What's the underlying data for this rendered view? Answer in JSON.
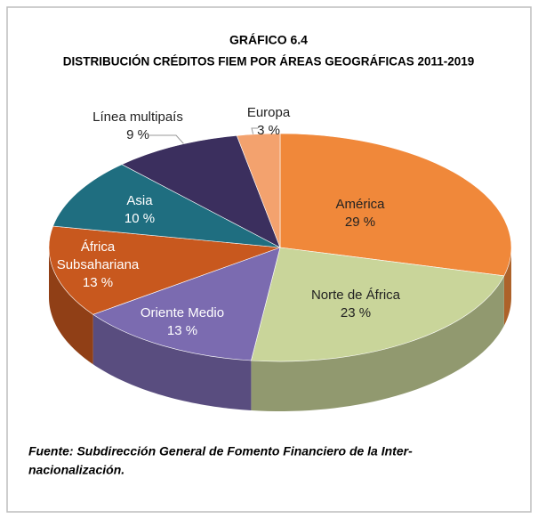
{
  "chart_data": {
    "type": "pie3d",
    "title": "GRÁFICO 6.4",
    "subtitle": "DISTRIBUCIÓN CRÉDITOS FIEM POR ÁREAS GEOGRÁFICAS 2011-2019",
    "categories": [
      "América",
      "Norte de África",
      "Oriente Medio",
      "África Subsahariana",
      "Asia",
      "Línea multipaís",
      "Europa"
    ],
    "values": [
      29,
      23,
      13,
      13,
      10,
      9,
      3
    ],
    "value_labels": [
      "29 %",
      "23 %",
      "13 %",
      "13 %",
      "10 %",
      "9 %",
      "3 %"
    ],
    "colors": [
      "#f0883a",
      "#c9d59a",
      "#7b6bb0",
      "#c8581e",
      "#1f6e80",
      "#3b2f5e",
      "#f3a26e"
    ],
    "footer": [
      "Fuente: Subdirección General de Fomento Financiero de la Inter-",
      "nacionalización."
    ]
  }
}
